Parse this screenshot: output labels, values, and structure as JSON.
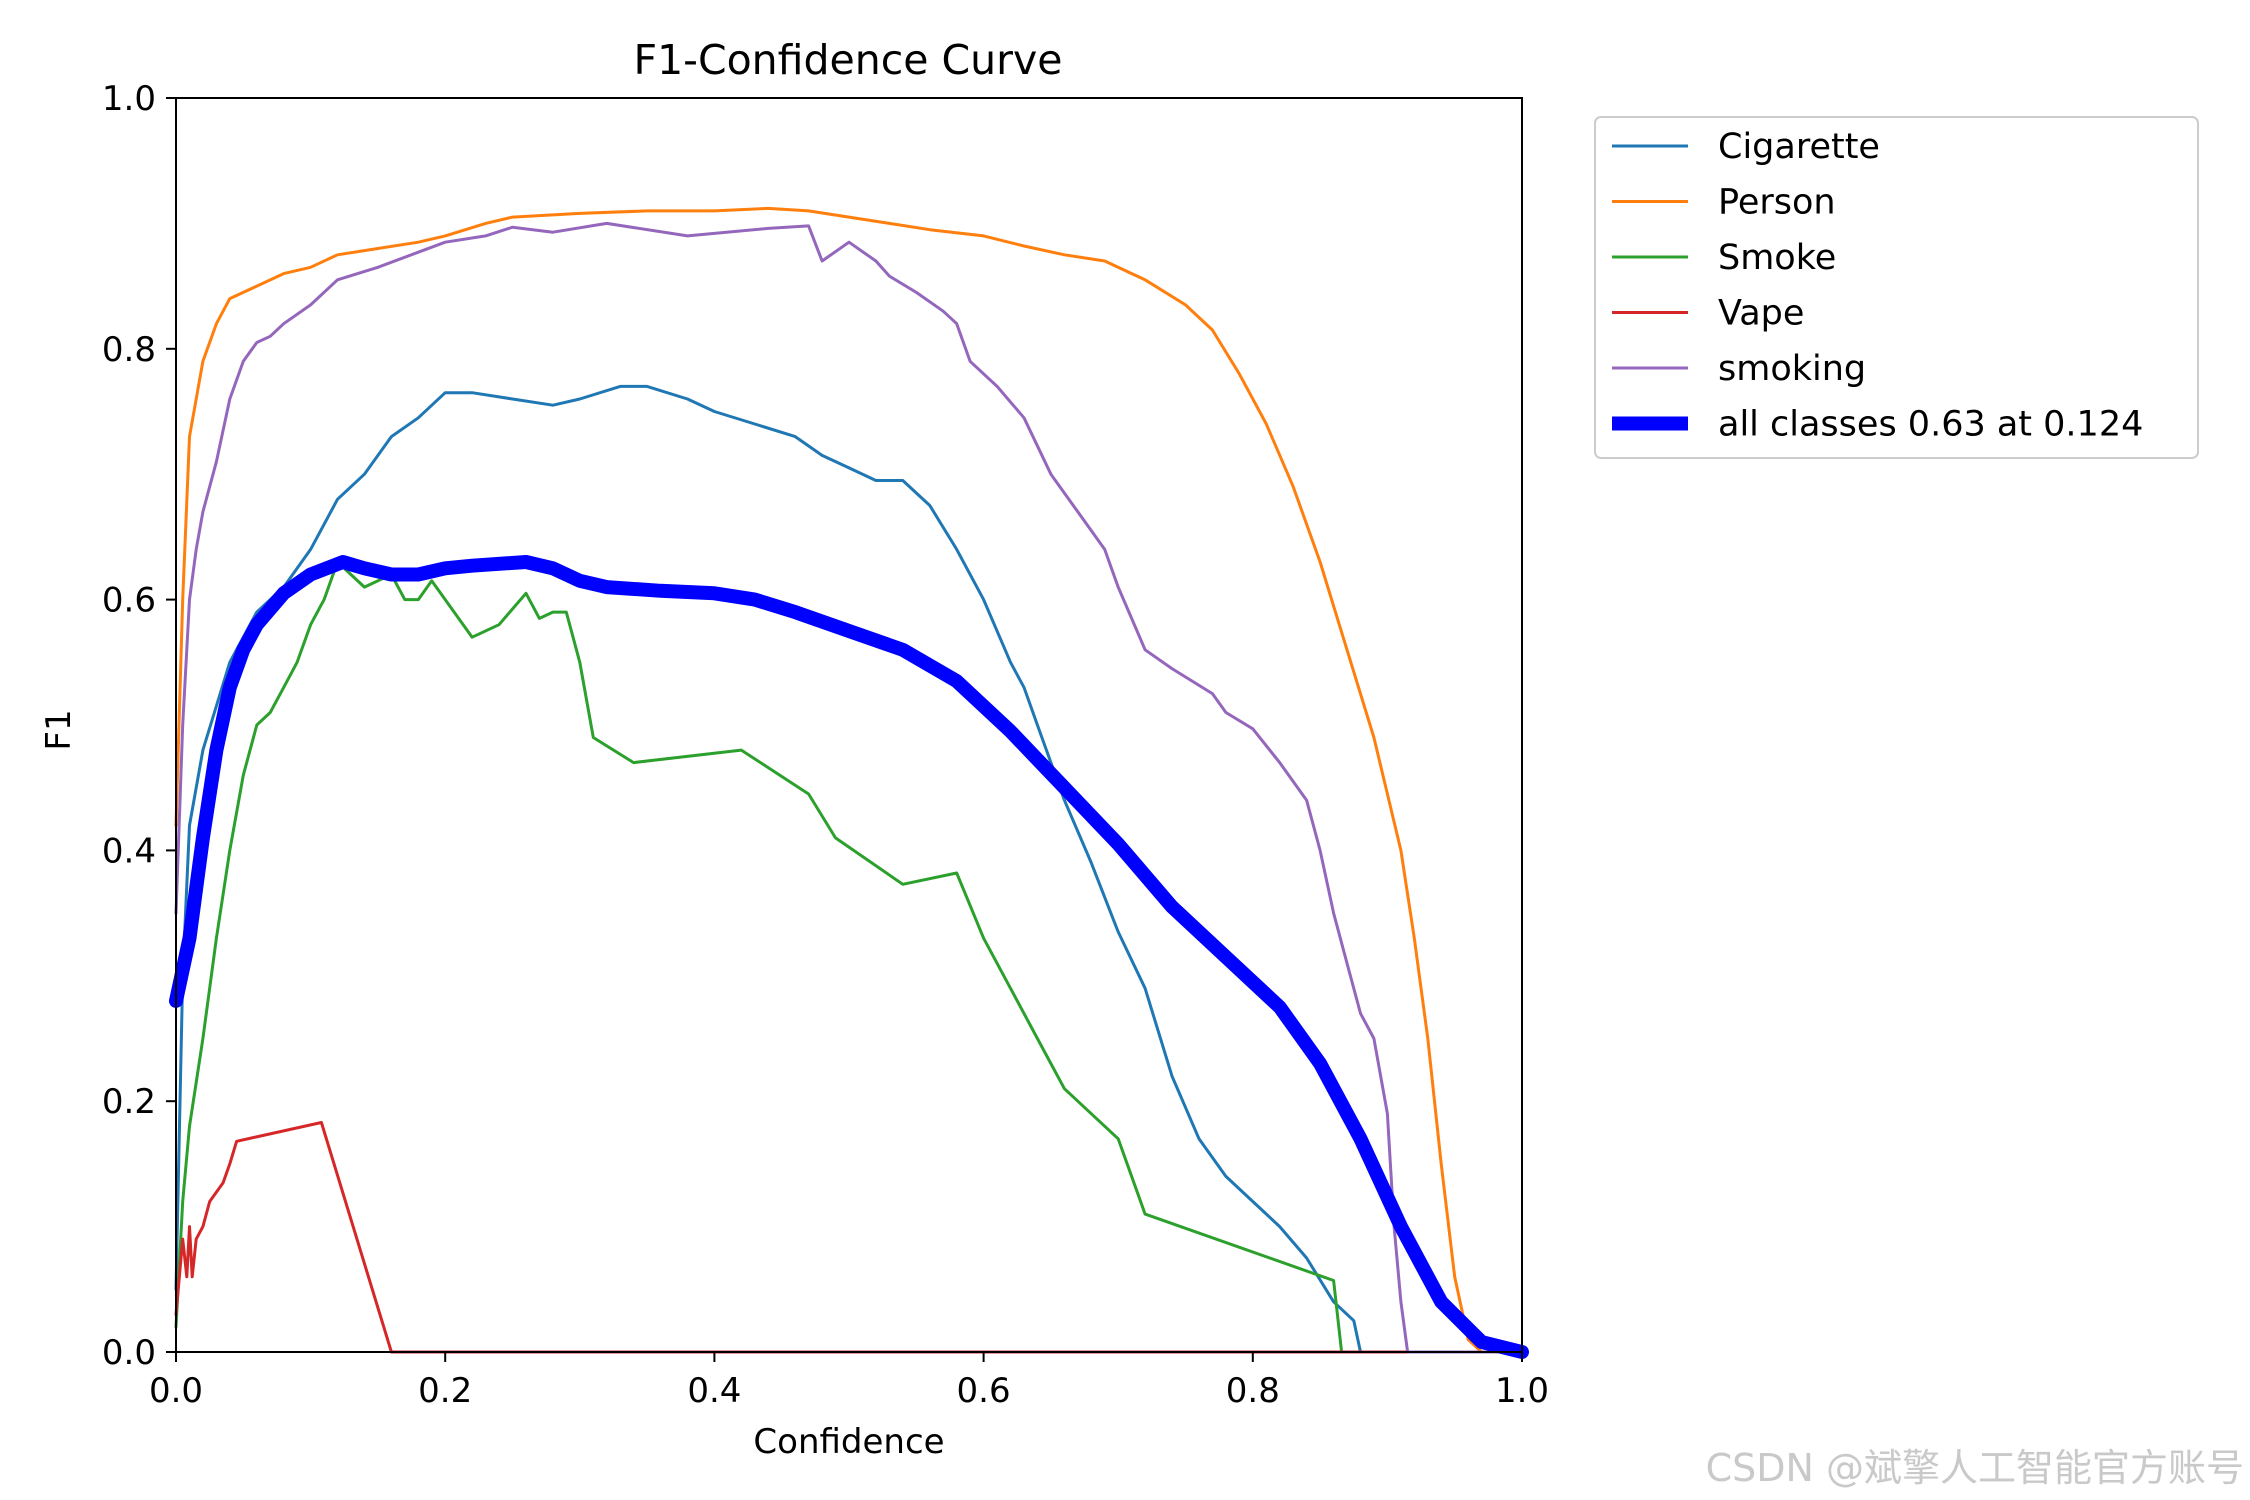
{
  "chart_data": {
    "type": "line",
    "title": "F1-Confidence Curve",
    "xlabel": "Confidence",
    "ylabel": "F1",
    "xlim": [
      0.0,
      1.0
    ],
    "ylim": [
      0.0,
      1.0
    ],
    "xticks": [
      "0.0",
      "0.2",
      "0.4",
      "0.6",
      "0.8",
      "1.0"
    ],
    "yticks": [
      "0.0",
      "0.2",
      "0.4",
      "0.6",
      "0.8",
      "1.0"
    ],
    "grid": false,
    "legend_position": "outside-top-right",
    "series": [
      {
        "name": "Cigarette",
        "color": "#1f77b4",
        "width": 1.5,
        "points": [
          [
            0.0,
            0.05
          ],
          [
            0.005,
            0.3
          ],
          [
            0.01,
            0.42
          ],
          [
            0.02,
            0.48
          ],
          [
            0.04,
            0.55
          ],
          [
            0.06,
            0.59
          ],
          [
            0.08,
            0.61
          ],
          [
            0.1,
            0.64
          ],
          [
            0.12,
            0.68
          ],
          [
            0.14,
            0.7
          ],
          [
            0.16,
            0.73
          ],
          [
            0.18,
            0.745
          ],
          [
            0.2,
            0.765
          ],
          [
            0.22,
            0.765
          ],
          [
            0.25,
            0.76
          ],
          [
            0.28,
            0.755
          ],
          [
            0.3,
            0.76
          ],
          [
            0.33,
            0.77
          ],
          [
            0.35,
            0.77
          ],
          [
            0.38,
            0.76
          ],
          [
            0.4,
            0.75
          ],
          [
            0.43,
            0.74
          ],
          [
            0.46,
            0.73
          ],
          [
            0.48,
            0.715
          ],
          [
            0.5,
            0.705
          ],
          [
            0.52,
            0.695
          ],
          [
            0.54,
            0.695
          ],
          [
            0.56,
            0.675
          ],
          [
            0.58,
            0.64
          ],
          [
            0.6,
            0.6
          ],
          [
            0.62,
            0.55
          ],
          [
            0.63,
            0.53
          ],
          [
            0.64,
            0.5
          ],
          [
            0.66,
            0.44
          ],
          [
            0.68,
            0.39
          ],
          [
            0.7,
            0.335
          ],
          [
            0.72,
            0.29
          ],
          [
            0.74,
            0.22
          ],
          [
            0.76,
            0.17
          ],
          [
            0.78,
            0.14
          ],
          [
            0.8,
            0.12
          ],
          [
            0.82,
            0.1
          ],
          [
            0.84,
            0.075
          ],
          [
            0.86,
            0.04
          ],
          [
            0.875,
            0.025
          ],
          [
            0.88,
            0.0
          ],
          [
            1.0,
            0.0
          ]
        ]
      },
      {
        "name": "Person",
        "color": "#ff7f0e",
        "width": 1.5,
        "points": [
          [
            0.0,
            0.42
          ],
          [
            0.005,
            0.6
          ],
          [
            0.01,
            0.73
          ],
          [
            0.02,
            0.79
          ],
          [
            0.03,
            0.82
          ],
          [
            0.04,
            0.84
          ],
          [
            0.06,
            0.85
          ],
          [
            0.08,
            0.86
          ],
          [
            0.1,
            0.865
          ],
          [
            0.12,
            0.875
          ],
          [
            0.15,
            0.88
          ],
          [
            0.18,
            0.885
          ],
          [
            0.2,
            0.89
          ],
          [
            0.23,
            0.9
          ],
          [
            0.25,
            0.905
          ],
          [
            0.3,
            0.908
          ],
          [
            0.35,
            0.91
          ],
          [
            0.4,
            0.91
          ],
          [
            0.44,
            0.912
          ],
          [
            0.47,
            0.91
          ],
          [
            0.5,
            0.905
          ],
          [
            0.53,
            0.9
          ],
          [
            0.56,
            0.895
          ],
          [
            0.6,
            0.89
          ],
          [
            0.63,
            0.882
          ],
          [
            0.66,
            0.875
          ],
          [
            0.69,
            0.87
          ],
          [
            0.72,
            0.855
          ],
          [
            0.75,
            0.835
          ],
          [
            0.77,
            0.815
          ],
          [
            0.79,
            0.78
          ],
          [
            0.81,
            0.74
          ],
          [
            0.83,
            0.69
          ],
          [
            0.85,
            0.63
          ],
          [
            0.87,
            0.56
          ],
          [
            0.89,
            0.49
          ],
          [
            0.91,
            0.4
          ],
          [
            0.92,
            0.33
          ],
          [
            0.93,
            0.25
          ],
          [
            0.94,
            0.15
          ],
          [
            0.95,
            0.06
          ],
          [
            0.96,
            0.01
          ],
          [
            0.97,
            0.0
          ],
          [
            1.0,
            0.0
          ]
        ]
      },
      {
        "name": "Smoke",
        "color": "#2ca02c",
        "width": 1.5,
        "points": [
          [
            0.0,
            0.02
          ],
          [
            0.005,
            0.12
          ],
          [
            0.01,
            0.18
          ],
          [
            0.02,
            0.25
          ],
          [
            0.03,
            0.33
          ],
          [
            0.04,
            0.4
          ],
          [
            0.05,
            0.46
          ],
          [
            0.06,
            0.5
          ],
          [
            0.07,
            0.51
          ],
          [
            0.08,
            0.53
          ],
          [
            0.09,
            0.55
          ],
          [
            0.1,
            0.58
          ],
          [
            0.11,
            0.6
          ],
          [
            0.12,
            0.63
          ],
          [
            0.14,
            0.61
          ],
          [
            0.16,
            0.62
          ],
          [
            0.17,
            0.6
          ],
          [
            0.18,
            0.6
          ],
          [
            0.19,
            0.615
          ],
          [
            0.2,
            0.6
          ],
          [
            0.22,
            0.57
          ],
          [
            0.24,
            0.58
          ],
          [
            0.26,
            0.605
          ],
          [
            0.27,
            0.585
          ],
          [
            0.28,
            0.59
          ],
          [
            0.29,
            0.59
          ],
          [
            0.3,
            0.55
          ],
          [
            0.31,
            0.49
          ],
          [
            0.34,
            0.47
          ],
          [
            0.42,
            0.48
          ],
          [
            0.47,
            0.445
          ],
          [
            0.49,
            0.41
          ],
          [
            0.54,
            0.373
          ],
          [
            0.58,
            0.382
          ],
          [
            0.6,
            0.33
          ],
          [
            0.62,
            0.29
          ],
          [
            0.64,
            0.25
          ],
          [
            0.66,
            0.21
          ],
          [
            0.7,
            0.17
          ],
          [
            0.72,
            0.11
          ],
          [
            0.86,
            0.057
          ],
          [
            0.866,
            0.0
          ],
          [
            1.0,
            0.0
          ]
        ]
      },
      {
        "name": "Vape",
        "color": "#d62728",
        "width": 1.5,
        "points": [
          [
            0.0,
            0.03
          ],
          [
            0.005,
            0.09
          ],
          [
            0.008,
            0.06
          ],
          [
            0.01,
            0.1
          ],
          [
            0.012,
            0.06
          ],
          [
            0.015,
            0.09
          ],
          [
            0.02,
            0.1
          ],
          [
            0.025,
            0.12
          ],
          [
            0.035,
            0.135
          ],
          [
            0.04,
            0.15
          ],
          [
            0.045,
            0.168
          ],
          [
            0.108,
            0.183
          ],
          [
            0.16,
            0.0
          ],
          [
            1.0,
            0.0
          ]
        ]
      },
      {
        "name": "smoking",
        "color": "#9467bd",
        "width": 1.5,
        "points": [
          [
            0.0,
            0.35
          ],
          [
            0.005,
            0.5
          ],
          [
            0.01,
            0.6
          ],
          [
            0.015,
            0.64
          ],
          [
            0.02,
            0.67
          ],
          [
            0.03,
            0.71
          ],
          [
            0.04,
            0.76
          ],
          [
            0.05,
            0.79
          ],
          [
            0.06,
            0.805
          ],
          [
            0.07,
            0.81
          ],
          [
            0.08,
            0.82
          ],
          [
            0.1,
            0.835
          ],
          [
            0.12,
            0.855
          ],
          [
            0.15,
            0.865
          ],
          [
            0.18,
            0.877
          ],
          [
            0.2,
            0.885
          ],
          [
            0.23,
            0.89
          ],
          [
            0.25,
            0.897
          ],
          [
            0.28,
            0.893
          ],
          [
            0.32,
            0.9
          ],
          [
            0.38,
            0.89
          ],
          [
            0.44,
            0.896
          ],
          [
            0.47,
            0.898
          ],
          [
            0.48,
            0.87
          ],
          [
            0.5,
            0.885
          ],
          [
            0.52,
            0.87
          ],
          [
            0.53,
            0.858
          ],
          [
            0.55,
            0.845
          ],
          [
            0.57,
            0.83
          ],
          [
            0.58,
            0.82
          ],
          [
            0.59,
            0.79
          ],
          [
            0.61,
            0.77
          ],
          [
            0.63,
            0.745
          ],
          [
            0.65,
            0.7
          ],
          [
            0.67,
            0.67
          ],
          [
            0.69,
            0.64
          ],
          [
            0.7,
            0.61
          ],
          [
            0.72,
            0.56
          ],
          [
            0.74,
            0.545
          ],
          [
            0.77,
            0.525
          ],
          [
            0.78,
            0.51
          ],
          [
            0.8,
            0.497
          ],
          [
            0.82,
            0.47
          ],
          [
            0.84,
            0.44
          ],
          [
            0.85,
            0.4
          ],
          [
            0.86,
            0.35
          ],
          [
            0.87,
            0.31
          ],
          [
            0.88,
            0.27
          ],
          [
            0.89,
            0.25
          ],
          [
            0.9,
            0.19
          ],
          [
            0.905,
            0.1
          ],
          [
            0.91,
            0.04
          ],
          [
            0.915,
            0.0
          ],
          [
            1.0,
            0.0
          ]
        ]
      },
      {
        "name": "all classes 0.63 at 0.124",
        "color": "#0000ff",
        "width": 7,
        "points": [
          [
            0.0,
            0.28
          ],
          [
            0.01,
            0.33
          ],
          [
            0.02,
            0.41
          ],
          [
            0.03,
            0.48
          ],
          [
            0.04,
            0.53
          ],
          [
            0.05,
            0.56
          ],
          [
            0.06,
            0.58
          ],
          [
            0.08,
            0.605
          ],
          [
            0.1,
            0.62
          ],
          [
            0.124,
            0.63
          ],
          [
            0.14,
            0.625
          ],
          [
            0.16,
            0.62
          ],
          [
            0.18,
            0.62
          ],
          [
            0.2,
            0.625
          ],
          [
            0.22,
            0.627
          ],
          [
            0.26,
            0.63
          ],
          [
            0.28,
            0.625
          ],
          [
            0.3,
            0.615
          ],
          [
            0.32,
            0.61
          ],
          [
            0.36,
            0.607
          ],
          [
            0.4,
            0.605
          ],
          [
            0.43,
            0.6
          ],
          [
            0.46,
            0.59
          ],
          [
            0.5,
            0.575
          ],
          [
            0.54,
            0.56
          ],
          [
            0.58,
            0.535
          ],
          [
            0.62,
            0.495
          ],
          [
            0.66,
            0.45
          ],
          [
            0.7,
            0.405
          ],
          [
            0.74,
            0.355
          ],
          [
            0.78,
            0.315
          ],
          [
            0.82,
            0.275
          ],
          [
            0.85,
            0.23
          ],
          [
            0.88,
            0.17
          ],
          [
            0.91,
            0.1
          ],
          [
            0.94,
            0.04
          ],
          [
            0.97,
            0.008
          ],
          [
            1.0,
            0.0
          ]
        ]
      }
    ]
  },
  "watermark": "CSDN @斌擎人工智能官方账号"
}
